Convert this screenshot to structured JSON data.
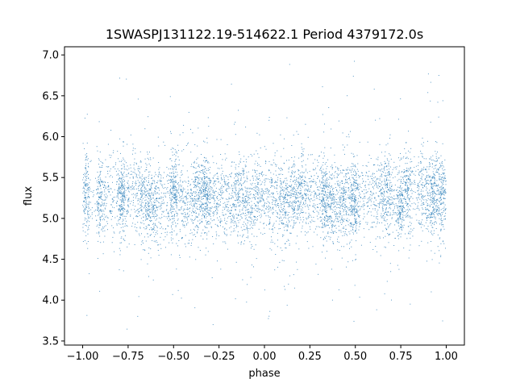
{
  "chart_data": {
    "type": "scatter",
    "title": "1SWASPJ131122.19-514622.1 Period 4379172.0s",
    "xlabel": "phase",
    "ylabel": "flux",
    "xlim": [
      -1.1,
      1.1
    ],
    "ylim": [
      3.45,
      7.1
    ],
    "xticks": [
      -1.0,
      -0.75,
      -0.5,
      -0.25,
      0.0,
      0.25,
      0.5,
      0.75,
      1.0
    ],
    "xtick_labels": [
      "−1.00",
      "−0.75",
      "−0.50",
      "−0.25",
      "0.00",
      "0.25",
      "0.50",
      "0.75",
      "1.00"
    ],
    "yticks": [
      3.5,
      4.0,
      4.5,
      5.0,
      5.5,
      6.0,
      6.5,
      7.0
    ],
    "ytick_labels": [
      "3.5",
      "4.0",
      "4.5",
      "5.0",
      "5.5",
      "6.0",
      "6.5",
      "7.0"
    ],
    "grid": false,
    "marker_color": "#1f77b4",
    "series": [
      {
        "x_range": [
          -1.0,
          1.0
        ],
        "typical_center": 5.25,
        "core_range": [
          4.8,
          5.7
        ],
        "outlier_range": [
          3.6,
          7.0
        ]
      }
    ]
  }
}
